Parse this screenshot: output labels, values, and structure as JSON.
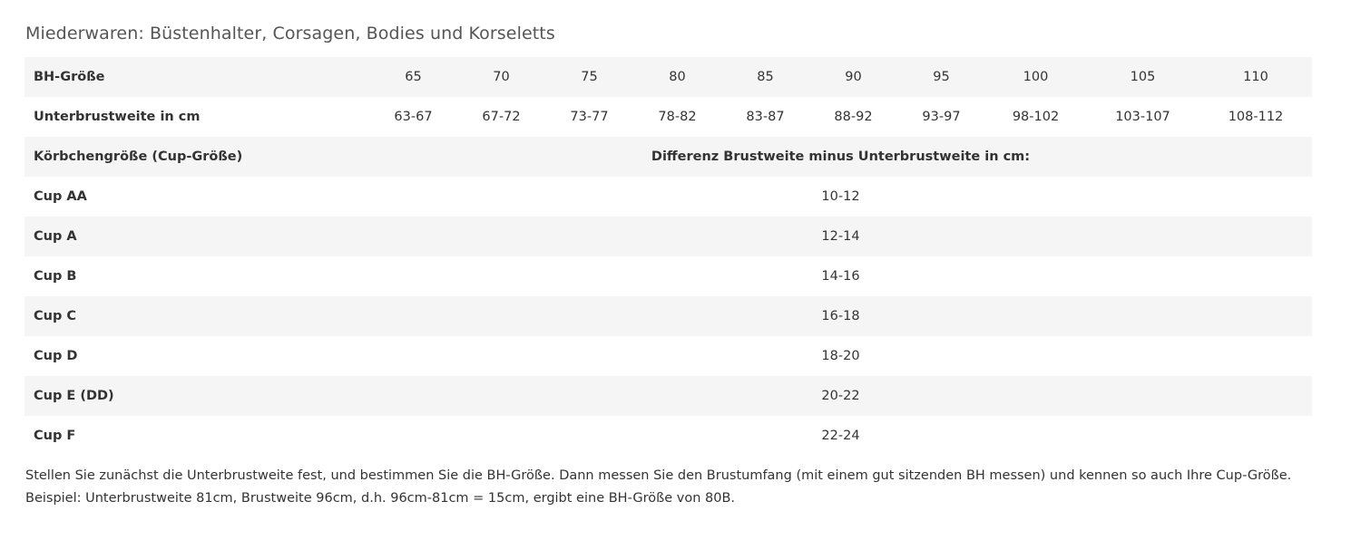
{
  "title": "Miederwaren: Büstenhalter, Corsagen, Bodies und Korseletts",
  "size_row": {
    "label": "BH-Größe",
    "values": [
      "65",
      "70",
      "75",
      "80",
      "85",
      "90",
      "95",
      "100",
      "105",
      "110"
    ]
  },
  "underbust_row": {
    "label": "Unterbrustweite in cm",
    "values": [
      "63-67",
      "67-72",
      "73-77",
      "78-82",
      "83-87",
      "88-92",
      "93-97",
      "98-102",
      "103-107",
      "108-112"
    ]
  },
  "cup_header": {
    "label": "Körbchengröße (Cup-Größe)",
    "value": "Differenz Brustweite minus Unterbrustweite in cm:"
  },
  "cups": [
    {
      "label": "Cup AA",
      "value": "10-12"
    },
    {
      "label": "Cup A",
      "value": "12-14"
    },
    {
      "label": "Cup B",
      "value": "14-16"
    },
    {
      "label": "Cup C",
      "value": "16-18"
    },
    {
      "label": "Cup D",
      "value": "18-20"
    },
    {
      "label": "Cup E (DD)",
      "value": "20-22"
    },
    {
      "label": "Cup F",
      "value": "22-24"
    }
  ],
  "notes": [
    "Stellen Sie zunächst die Unterbrustweite fest, und bestimmen Sie die BH-Größe. Dann messen Sie den Brustumfang (mit einem gut sitzenden BH messen) und kennen so auch Ihre Cup-Größe.",
    "Beispiel: Unterbrustweite 81cm, Brustweite 96cm, d.h. 96cm-81cm = 15cm, ergibt eine BH-Größe von 80B."
  ],
  "colors": {
    "row_shade": "#f5f5f5",
    "text": "#333333",
    "title": "#555555"
  }
}
